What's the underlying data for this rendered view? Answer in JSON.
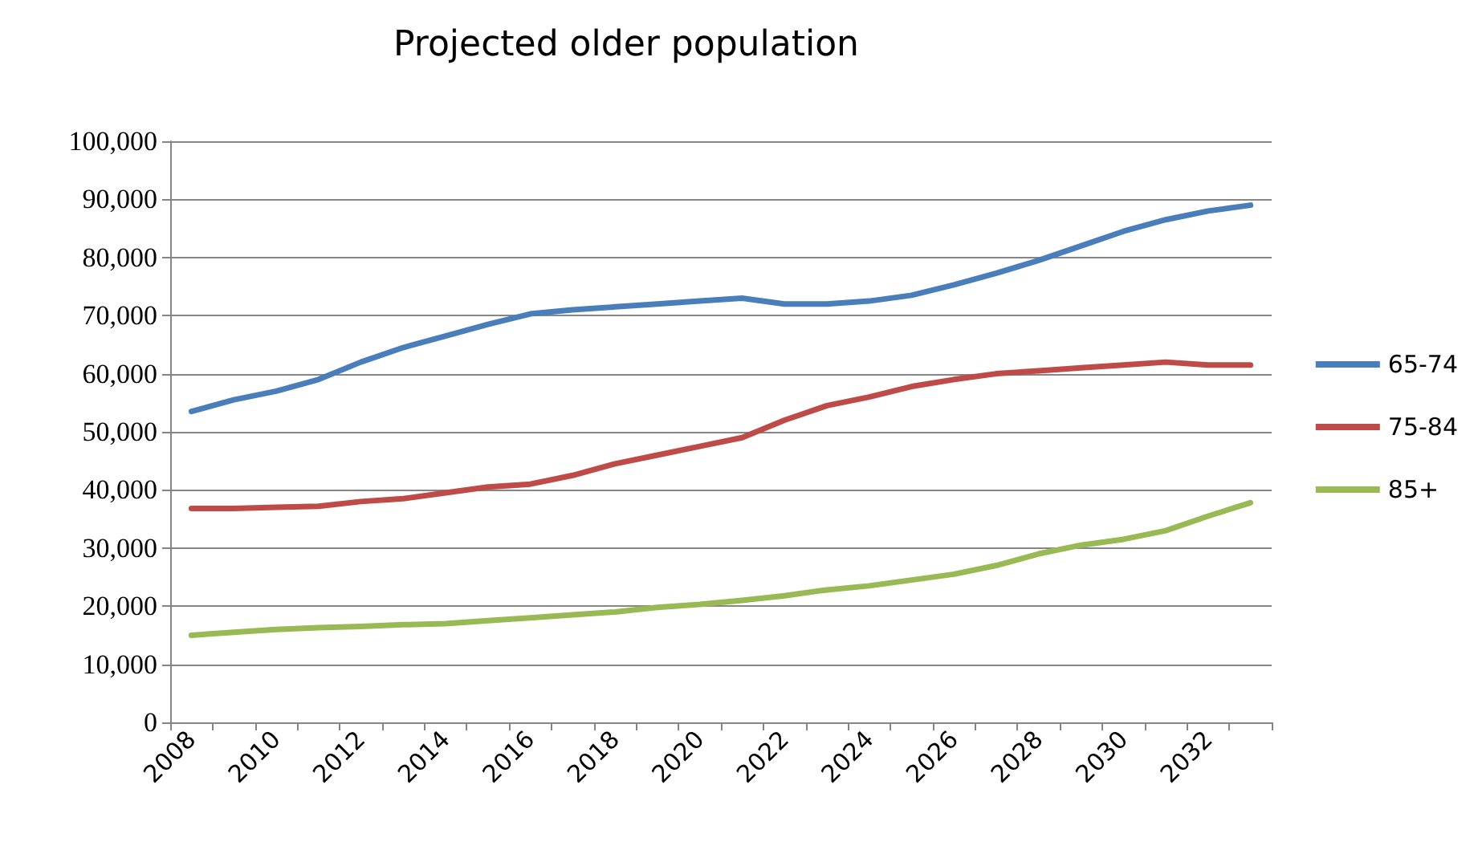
{
  "chart_data": {
    "type": "line",
    "title": "Projected older population",
    "categories": [
      "2008",
      null,
      "2010",
      null,
      "2012",
      null,
      "2014",
      null,
      "2016",
      null,
      "2018",
      null,
      "2020",
      null,
      "2022",
      null,
      "2024",
      null,
      "2026",
      null,
      "2028",
      null,
      "2030",
      null,
      "2032",
      null
    ],
    "series": [
      {
        "name": "65-74",
        "color": "#4a7ebb",
        "values": [
          53500,
          55500,
          57000,
          59000,
          62000,
          64500,
          66500,
          68500,
          70300,
          71000,
          71500,
          72000,
          72500,
          73000,
          72000,
          72000,
          72500,
          73500,
          75300,
          77300,
          79500,
          82000,
          84500,
          86500,
          88000,
          89000
        ]
      },
      {
        "name": "75-84",
        "color": "#be4b48",
        "values": [
          36800,
          36800,
          37000,
          37200,
          38000,
          38500,
          39500,
          40500,
          41000,
          42500,
          44500,
          46000,
          47500,
          49000,
          52000,
          54500,
          56000,
          57800,
          59000,
          60000,
          60500,
          61000,
          61500,
          62000,
          61500,
          61500
        ]
      },
      {
        "name": "85+",
        "color": "#98b954",
        "values": [
          15000,
          15500,
          16000,
          16300,
          16500,
          16800,
          17000,
          17500,
          18000,
          18500,
          19000,
          19800,
          20300,
          21000,
          21800,
          22800,
          23500,
          24500,
          25500,
          27000,
          29000,
          30500,
          31500,
          33000,
          35500,
          37800
        ]
      }
    ],
    "ylim": [
      0,
      100000
    ],
    "yticks": [
      0,
      {
        "value": 10000,
        "label": "10,000"
      },
      {
        "value": 20000,
        "label": "20,000"
      },
      {
        "value": 30000,
        "label": "30,000"
      },
      {
        "value": 40000,
        "label": "40,000"
      },
      {
        "value": 50000,
        "label": "50,000"
      },
      {
        "value": 60000,
        "label": "60,000"
      },
      {
        "value": 70000,
        "label": "70,000"
      },
      {
        "value": 80000,
        "label": "80,000"
      },
      {
        "value": 90000,
        "label": "90,000"
      },
      {
        "value": 100000,
        "label": "100,000"
      }
    ],
    "grid": "y",
    "legend": "right",
    "marker": "none",
    "line_style": "solid"
  }
}
